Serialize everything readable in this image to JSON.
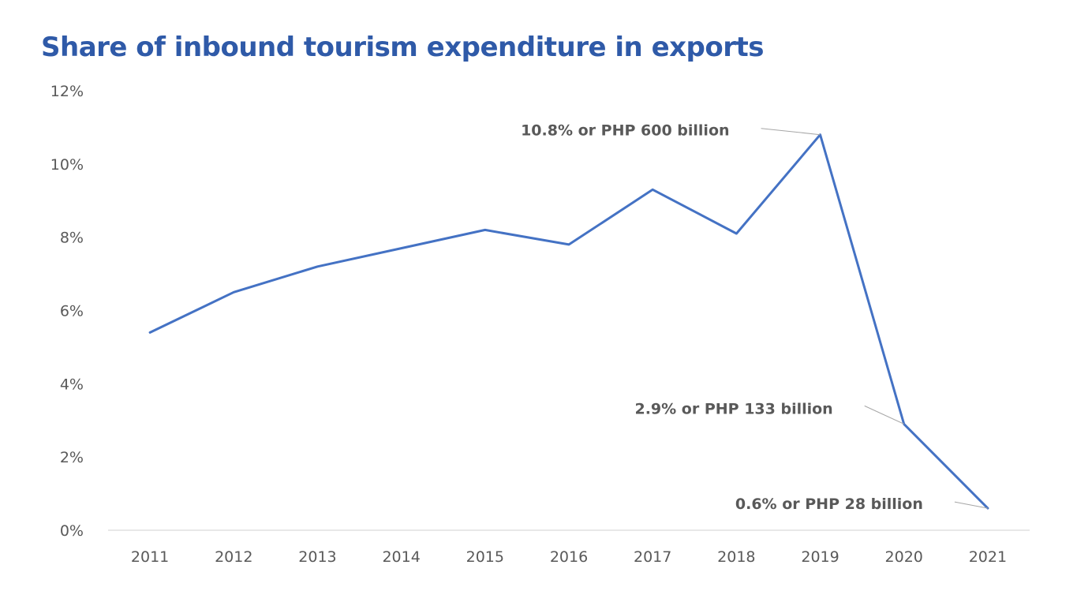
{
  "chart_data": {
    "type": "line",
    "title": "Share of inbound tourism expenditure in exports",
    "xlabel": "",
    "ylabel": "",
    "categories": [
      "2011",
      "2012",
      "2013",
      "2014",
      "2015",
      "2016",
      "2017",
      "2018",
      "2019",
      "2020",
      "2021"
    ],
    "series": [
      {
        "values": [
          5.4,
          6.5,
          7.2,
          7.7,
          8.2,
          7.8,
          9.3,
          8.1,
          10.8,
          2.9,
          0.6
        ],
        "color": "#4472c4"
      }
    ],
    "ylim": [
      0,
      12
    ],
    "yticks": [
      0,
      2,
      4,
      6,
      8,
      10,
      12
    ],
    "ytick_labels": [
      "0%",
      "2%",
      "4%",
      "6%",
      "8%",
      "10%",
      "12%"
    ],
    "grid": false,
    "legend": "none",
    "annotations": [
      {
        "category": "2019",
        "text": "10.8% or PHP 600 billion"
      },
      {
        "category": "2020",
        "text": "2.9% or PHP 133 billion"
      },
      {
        "category": "2021",
        "text": "0.6% or PHP 28 billion"
      }
    ]
  },
  "colors": {
    "title": "#2f5aa8",
    "line": "#4472c4",
    "axis": "#d9d9d9",
    "text": "#595959",
    "leader": "#a6a6a6"
  }
}
